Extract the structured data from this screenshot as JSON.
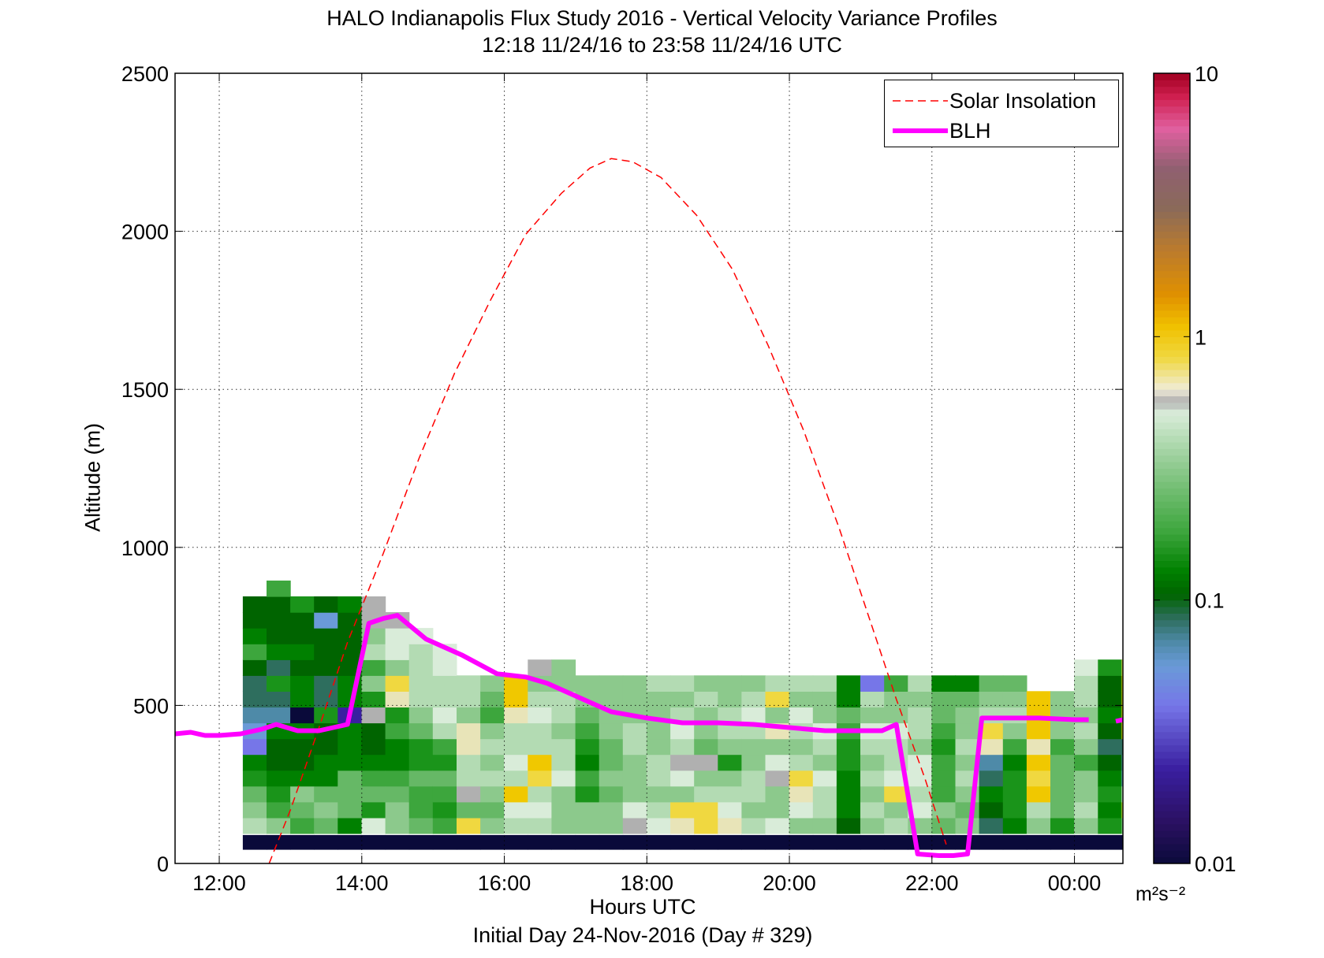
{
  "title": {
    "line1": "HALO Indianapolis Flux Study 2016 - Vertical Velocity Variance Profiles",
    "line2": "12:18 11/24/16 to 23:58 11/24/16  UTC"
  },
  "axes": {
    "xlabel": "Hours UTC",
    "xlabel2": "Initial Day 24-Nov-2016 (Day # 329)",
    "ylabel": "Altitude (m)",
    "xticks": [
      "12:00",
      "14:00",
      "16:00",
      "18:00",
      "20:00",
      "22:00",
      "00:00"
    ],
    "yticks": [
      "0",
      "500",
      "1000",
      "1500",
      "2000",
      "2500"
    ],
    "colorbar_ticks": [
      "0.01",
      "0.1",
      "1",
      "10"
    ],
    "colorbar_unit": "m²s⁻²"
  },
  "legend": {
    "solar_label": "Solar Insolation",
    "blh_label": "BLH",
    "position": "top-right"
  },
  "colors": {
    "solar": "#ff0000",
    "blh": "#ff00ff",
    "grid": "#000000",
    "palette": [
      "#0a0a3a",
      "#3a1fa0",
      "#7676e8",
      "#6a9ad8",
      "#4e8aa8",
      "#2e6e5e",
      "#006400",
      "#008000",
      "#1a941a",
      "#3da63d",
      "#66b866",
      "#8cc98c",
      "#b3dbb3",
      "#d9ecd9",
      "#b0b0b0",
      "#e8e4b8",
      "#f0d840",
      "#f0c800",
      "#f0a000",
      "#d07a20",
      "#a0704a",
      "#806060",
      "#c04060",
      "#e84080",
      "#b00020"
    ]
  },
  "chart_data": {
    "type": "heatmap",
    "title": "HALO Indianapolis Flux Study 2016 - Vertical Velocity Variance Profiles",
    "subtitle": "12:18 11/24/16 to 23:58 11/24/16  UTC",
    "xlabel": "Hours UTC",
    "ylabel": "Altitude (m)",
    "xlim": [
      11.38,
      24.68
    ],
    "ylim": [
      0,
      2500
    ],
    "grid": true,
    "colorbar": {
      "scale": "log",
      "min": 0.01,
      "max": 10,
      "label": "m²s⁻²"
    },
    "heatmap": {
      "x_start": 12.33,
      "x_step": 0.3333,
      "y_start": 45,
      "y_step": 50,
      "columns": [
        {
          "top": 8,
          "cells": [
            0,
            12,
            11,
            10,
            8,
            7,
            2,
            3,
            4,
            5,
            5,
            6,
            9,
            7,
            6,
            6
          ]
        },
        {
          "top": 9,
          "cells": [
            0,
            11,
            9,
            8,
            7,
            6,
            6,
            7,
            4,
            5,
            8,
            5,
            7,
            6,
            6,
            6,
            9
          ]
        },
        {
          "top": 8,
          "cells": [
            0,
            9,
            10,
            11,
            7,
            6,
            6,
            7,
            0,
            7,
            7,
            6,
            7,
            6,
            6,
            8
          ]
        },
        {
          "top": 8,
          "cells": [
            0,
            10,
            11,
            10,
            7,
            7,
            6,
            6,
            8,
            5,
            5,
            6,
            6,
            6,
            3,
            6
          ]
        },
        {
          "top": 8,
          "cells": [
            0,
            7,
            10,
            10,
            10,
            7,
            7,
            7,
            1,
            7,
            7,
            6,
            6,
            6,
            6,
            7
          ]
        },
        {
          "top": 7,
          "cells": [
            0,
            13,
            8,
            10,
            9,
            7,
            6,
            6,
            14,
            8,
            11,
            9,
            12,
            11,
            14,
            14
          ]
        },
        {
          "top": 7,
          "cells": [
            0,
            11,
            11,
            10,
            9,
            7,
            7,
            9,
            8,
            15,
            16,
            11,
            13,
            13,
            14
          ]
        },
        {
          "top": 7,
          "cells": [
            0,
            10,
            9,
            9,
            10,
            8,
            8,
            10,
            11,
            12,
            12,
            12,
            12,
            13
          ]
        },
        {
          "top": 6,
          "cells": [
            0,
            9,
            8,
            9,
            10,
            8,
            9,
            12,
            13,
            12,
            12,
            13,
            13
          ]
        },
        {
          "top": 5,
          "cells": [
            0,
            16,
            10,
            14,
            12,
            12,
            15,
            15,
            11,
            12,
            12
          ]
        },
        {
          "top": 5,
          "cells": [
            0,
            11,
            10,
            11,
            12,
            11,
            12,
            11,
            9,
            10,
            11
          ]
        },
        {
          "top": 4,
          "cells": [
            0,
            12,
            13,
            17,
            12,
            13,
            12,
            12,
            15,
            17,
            17
          ]
        },
        {
          "top": 4,
          "cells": [
            0,
            12,
            13,
            12,
            16,
            17,
            12,
            12,
            13,
            12,
            11,
            14
          ]
        },
        {
          "top": 4,
          "cells": [
            0,
            11,
            11,
            11,
            13,
            12,
            12,
            11,
            12,
            12,
            11,
            11
          ]
        },
        {
          "top": 3,
          "cells": [
            0,
            11,
            11,
            8,
            9,
            7,
            8,
            9,
            10,
            11,
            11
          ]
        },
        {
          "top": 3,
          "cells": [
            0,
            11,
            11,
            10,
            11,
            10,
            10,
            11,
            11,
            11,
            11
          ]
        },
        {
          "top": 3,
          "cells": [
            0,
            14,
            13,
            11,
            11,
            11,
            12,
            12,
            11,
            11,
            11
          ]
        },
        {
          "top": 3,
          "cells": [
            0,
            13,
            12,
            11,
            12,
            12,
            11,
            11,
            11,
            11,
            12
          ]
        },
        {
          "top": 3,
          "cells": [
            0,
            15,
            16,
            11,
            13,
            14,
            12,
            13,
            12,
            11,
            12
          ]
        },
        {
          "top": 3,
          "cells": [
            0,
            16,
            16,
            12,
            11,
            14,
            10,
            11,
            11,
            12,
            11
          ]
        },
        {
          "top": 3,
          "cells": [
            0,
            15,
            13,
            12,
            11,
            8,
            11,
            12,
            12,
            11,
            11
          ]
        },
        {
          "top": 3,
          "cells": [
            0,
            12,
            11,
            12,
            12,
            11,
            11,
            12,
            13,
            12,
            11
          ]
        },
        {
          "top": 3,
          "cells": [
            0,
            13,
            11,
            11,
            14,
            13,
            11,
            15,
            11,
            16,
            12
          ]
        },
        {
          "top": 3,
          "cells": [
            0,
            11,
            13,
            15,
            16,
            12,
            11,
            12,
            13,
            11,
            12
          ]
        },
        {
          "top": 3,
          "cells": [
            0,
            11,
            12,
            12,
            13,
            11,
            12,
            13,
            11,
            11,
            12
          ]
        },
        {
          "top": 3,
          "cells": [
            0,
            6,
            7,
            7,
            7,
            8,
            8,
            9,
            10,
            7,
            7
          ]
        },
        {
          "top": 2,
          "cells": [
            0,
            11,
            12,
            11,
            12,
            11,
            12,
            13,
            11,
            12,
            2
          ]
        },
        {
          "top": 3,
          "cells": [
            0,
            12,
            11,
            16,
            13,
            12,
            12,
            13,
            11,
            11,
            9
          ]
        },
        {
          "top": 3,
          "cells": [
            0,
            11,
            13,
            12,
            13,
            13,
            11,
            12,
            12,
            11,
            12
          ]
        },
        {
          "top": 3,
          "cells": [
            0,
            10,
            11,
            9,
            9,
            9,
            8,
            9,
            10,
            10,
            7
          ]
        },
        {
          "top": 3,
          "cells": [
            0,
            11,
            10,
            11,
            12,
            11,
            12,
            11,
            11,
            10,
            7
          ]
        },
        {
          "top": 2,
          "cells": [
            0,
            5,
            6,
            7,
            5,
            4,
            15,
            16,
            12,
            11,
            10
          ]
        },
        {
          "top": 2,
          "cells": [
            0,
            7,
            8,
            8,
            8,
            7,
            9,
            11,
            12,
            11,
            10
          ]
        },
        {
          "top": 2,
          "cells": [
            0,
            11,
            12,
            17,
            16,
            17,
            15,
            17,
            17,
            17
          ]
        },
        {
          "top": 2,
          "cells": [
            0,
            8,
            10,
            10,
            10,
            10,
            9,
            11,
            11,
            11
          ]
        },
        {
          "top": 3,
          "cells": [
            0,
            11,
            12,
            11,
            11,
            9,
            11,
            12,
            11,
            12,
            12,
            13
          ]
        },
        {
          "top": 3,
          "cells": [
            0,
            8,
            7,
            8,
            7,
            6,
            5,
            6,
            7,
            6,
            6,
            8
          ]
        },
        {
          "top": 3,
          "cells": [
            0,
            11,
            16,
            13,
            3,
            4,
            5,
            17,
            17,
            17,
            17,
            16
          ]
        }
      ]
    },
    "series": [
      {
        "name": "BLH",
        "type": "line",
        "x": [
          11.38,
          11.6,
          11.8,
          12.0,
          12.3,
          12.6,
          12.8,
          13.1,
          13.4,
          13.8,
          14.1,
          14.3,
          14.5,
          14.9,
          15.4,
          15.9,
          16.3,
          16.6,
          17.0,
          17.5,
          18.0,
          18.5,
          19.0,
          19.5,
          20.0,
          20.5,
          21.0,
          21.3,
          21.5,
          21.8,
          22.1,
          22.3,
          22.5,
          22.7,
          23.0,
          23.5,
          24.0,
          24.2
        ]
      },
      {
        "name": "Solar Insolation",
        "type": "line"
      }
    ],
    "blh_y": [
      410,
      415,
      405,
      405,
      410,
      425,
      440,
      420,
      420,
      440,
      760,
      775,
      785,
      710,
      660,
      600,
      590,
      570,
      530,
      480,
      460,
      445,
      445,
      440,
      430,
      420,
      420,
      420,
      440,
      30,
      25,
      25,
      30,
      460,
      460,
      460,
      455,
      455
    ],
    "blh_tail": {
      "x": [
        24.58,
        24.68
      ],
      "y": [
        450,
        455
      ]
    },
    "solar_x": [
      12.7,
      13.0,
      13.4,
      13.8,
      14.3,
      14.8,
      15.3,
      15.8,
      16.3,
      16.8,
      17.2,
      17.5,
      17.8,
      18.2,
      18.7,
      19.2,
      19.7,
      20.2,
      20.7,
      21.1,
      21.5,
      21.9,
      22.2
    ],
    "solar_y": [
      0,
      170,
      430,
      700,
      980,
      1280,
      1550,
      1780,
      1990,
      2120,
      2200,
      2230,
      2220,
      2170,
      2050,
      1880,
      1640,
      1370,
      1060,
      790,
      520,
      270,
      60
    ]
  }
}
